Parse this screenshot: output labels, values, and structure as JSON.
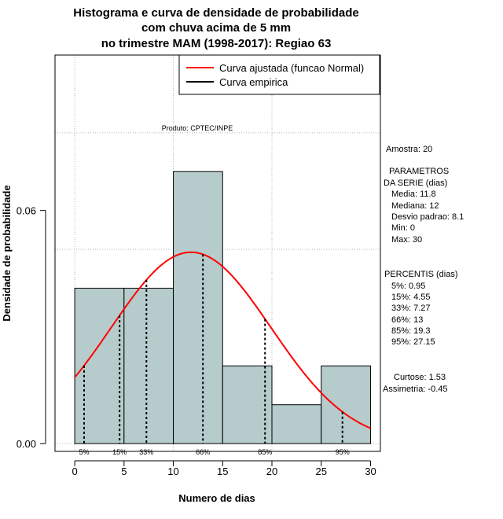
{
  "chart_data": {
    "type": "bar",
    "title_lines": [
      "Histograma e curva de densidade de probabilidade",
      "com chuva acima de 5 mm",
      "no trimestre MAM (1998-2017): Regiao 63"
    ],
    "xlabel": "Numero de dias",
    "ylabel": "Densidade de probabilidade",
    "xlim": [
      -2,
      31
    ],
    "ylim": [
      -0.002,
      0.1
    ],
    "x_ticks": [
      0,
      5,
      10,
      15,
      20,
      25,
      30
    ],
    "y_ticks": [
      0.0,
      0.06
    ],
    "y_tick_labels": [
      "0.00",
      "0.06"
    ],
    "grid": true,
    "bins": [
      {
        "start": 0,
        "end": 5,
        "density": 0.04
      },
      {
        "start": 5,
        "end": 10,
        "density": 0.04
      },
      {
        "start": 10,
        "end": 15,
        "density": 0.07
      },
      {
        "start": 15,
        "end": 20,
        "density": 0.02
      },
      {
        "start": 20,
        "end": 25,
        "density": 0.01
      },
      {
        "start": 25,
        "end": 30,
        "density": 0.02
      }
    ],
    "bar_color": "#b6cccc",
    "normal_curve": {
      "mean": 11.8,
      "sd": 8.1,
      "color": "#ff0000",
      "x_range": [
        0,
        30
      ]
    },
    "percentile_lines": [
      {
        "label": "5%",
        "x": 0.95
      },
      {
        "label": "15%",
        "x": 4.55
      },
      {
        "label": "33%",
        "x": 7.27
      },
      {
        "label": "66%",
        "x": 13
      },
      {
        "label": "85%",
        "x": 19.3
      },
      {
        "label": "95%",
        "x": 27.15
      }
    ],
    "legend": {
      "position": "top-right",
      "entries": [
        {
          "label": "Curva ajustada (funcao Normal)",
          "color": "#ff0000"
        },
        {
          "label": "Curva empirica",
          "color": "#000000"
        }
      ]
    },
    "credit": "Produto: CPTEC/INPE"
  },
  "side_panel": {
    "sample": "Amostra: 20",
    "params_header_1": "PARAMETROS",
    "params_header_2": "DA SERIE (dias)",
    "params": [
      "Media: 11.8",
      "Mediana: 12",
      "Desvio padrao: 8.1",
      "Min: 0",
      "Max: 30"
    ],
    "percentis_header": "PERCENTIS (dias)",
    "percentis": [
      "5%: 0.95",
      "15%: 4.55",
      "33%: 7.27",
      "66%: 13",
      "85%: 19.3",
      "95%: 27.15"
    ],
    "curtose": "Curtose: 1.53",
    "assimetria": "Assimetria: -0.45"
  }
}
